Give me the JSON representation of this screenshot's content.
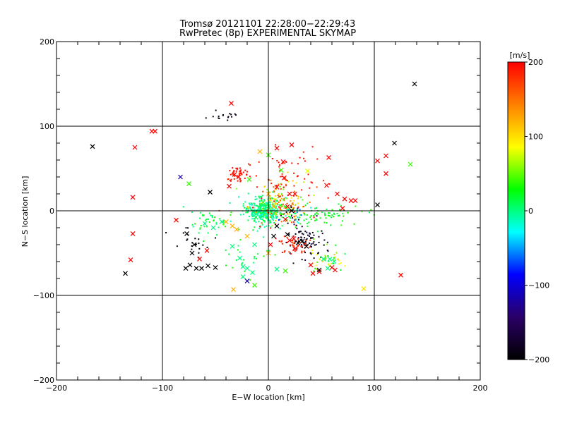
{
  "chart_data": {
    "type": "scatter",
    "title": "Tromsø 20121101 22:28:00−22:29:43",
    "subtitle": "RwPretec (8p) EXPERIMENTAL SKYMAP",
    "xlabel": "E−W location [km]",
    "ylabel": "N−S location [km]",
    "xlim": [
      -200,
      200
    ],
    "ylim": [
      -200,
      200
    ],
    "xticks": [
      -200,
      -100,
      0,
      100,
      200
    ],
    "yticks": [
      -200,
      -100,
      0,
      100,
      200
    ],
    "grid": true,
    "colorbar": {
      "label": "[m/s]",
      "min": -200,
      "max": 200,
      "ticks": [
        200,
        100,
        0,
        -100,
        -200
      ],
      "colors": [
        "#000000",
        "#2a0066",
        "#0000ff",
        "#00ffff",
        "#00ff00",
        "#ffff00",
        "#ff8000",
        "#ff0000"
      ]
    },
    "x_markers": [
      {
        "x": -166,
        "y": 76,
        "v": -200
      },
      {
        "x": -126,
        "y": 75,
        "v": 200
      },
      {
        "x": -110,
        "y": 94,
        "v": 200
      },
      {
        "x": -107,
        "y": 94,
        "v": 200
      },
      {
        "x": -128,
        "y": 16,
        "v": 200
      },
      {
        "x": -128,
        "y": -27,
        "v": 200
      },
      {
        "x": -130,
        "y": -58,
        "v": 200
      },
      {
        "x": -135,
        "y": -74,
        "v": -200
      },
      {
        "x": -83,
        "y": 40,
        "v": -120
      },
      {
        "x": -75,
        "y": 32,
        "v": 40
      },
      {
        "x": -55,
        "y": 22,
        "v": -200
      },
      {
        "x": -87,
        "y": -11,
        "v": 200
      },
      {
        "x": -77,
        "y": -27,
        "v": -200
      },
      {
        "x": -70,
        "y": -40,
        "v": -200
      },
      {
        "x": -72,
        "y": -50,
        "v": -200
      },
      {
        "x": -74,
        "y": -64,
        "v": -200
      },
      {
        "x": -68,
        "y": -68,
        "v": -200
      },
      {
        "x": -63,
        "y": -68,
        "v": -200
      },
      {
        "x": -57,
        "y": -65,
        "v": -200
      },
      {
        "x": -50,
        "y": -67,
        "v": -200
      },
      {
        "x": -78,
        "y": -68,
        "v": -200
      },
      {
        "x": -65,
        "y": -57,
        "v": 200
      },
      {
        "x": -58,
        "y": -47,
        "v": 200
      },
      {
        "x": -60,
        "y": -15,
        "v": 0
      },
      {
        "x": -52,
        "y": -20,
        "v": 0
      },
      {
        "x": -44,
        "y": -13,
        "v": 0
      },
      {
        "x": -40,
        "y": -13,
        "v": 120
      },
      {
        "x": -34,
        "y": -18,
        "v": 120
      },
      {
        "x": -35,
        "y": 127,
        "v": 200
      },
      {
        "x": -28,
        "y": 40,
        "v": 200
      },
      {
        "x": -32,
        "y": 43,
        "v": 200
      },
      {
        "x": -37,
        "y": 29,
        "v": 200
      },
      {
        "x": -18,
        "y": 37,
        "v": 40
      },
      {
        "x": -34,
        "y": -42,
        "v": 0
      },
      {
        "x": -27,
        "y": -56,
        "v": 0
      },
      {
        "x": -24,
        "y": -66,
        "v": 0
      },
      {
        "x": -24,
        "y": -78,
        "v": 0
      },
      {
        "x": -20,
        "y": -68,
        "v": 0
      },
      {
        "x": -15,
        "y": -73,
        "v": 0
      },
      {
        "x": -13,
        "y": -40,
        "v": 0
      },
      {
        "x": -33,
        "y": -93,
        "v": 120
      },
      {
        "x": -20,
        "y": -83,
        "v": -120
      },
      {
        "x": -13,
        "y": -88,
        "v": 40
      },
      {
        "x": -8,
        "y": 70,
        "v": 120
      },
      {
        "x": 0,
        "y": 66,
        "v": 40
      },
      {
        "x": 8,
        "y": 74,
        "v": 200
      },
      {
        "x": 14,
        "y": 58,
        "v": 200
      },
      {
        "x": 22,
        "y": 78,
        "v": 200
      },
      {
        "x": 12,
        "y": 48,
        "v": 40
      },
      {
        "x": 15,
        "y": 39,
        "v": 200
      },
      {
        "x": 8,
        "y": 28,
        "v": 200
      },
      {
        "x": 20,
        "y": 20,
        "v": 200
      },
      {
        "x": 0,
        "y": 20,
        "v": 120
      },
      {
        "x": -5,
        "y": 10,
        "v": 40
      },
      {
        "x": 5,
        "y": 5,
        "v": 120
      },
      {
        "x": 18,
        "y": 5,
        "v": 200
      },
      {
        "x": 22,
        "y": 0,
        "v": -200
      },
      {
        "x": 25,
        "y": 20,
        "v": 200
      },
      {
        "x": 37,
        "y": 47,
        "v": 80
      },
      {
        "x": 57,
        "y": 63,
        "v": 200
      },
      {
        "x": 55,
        "y": 30,
        "v": 200
      },
      {
        "x": 65,
        "y": 20,
        "v": 200
      },
      {
        "x": 72,
        "y": 14,
        "v": 200
      },
      {
        "x": 78,
        "y": 12,
        "v": 200
      },
      {
        "x": 82,
        "y": 12,
        "v": 200
      },
      {
        "x": 70,
        "y": 3,
        "v": 200
      },
      {
        "x": 103,
        "y": 59,
        "v": 200
      },
      {
        "x": 111,
        "y": 65,
        "v": 200
      },
      {
        "x": 119,
        "y": 80,
        "v": -200
      },
      {
        "x": 111,
        "y": 44,
        "v": 200
      },
      {
        "x": 134,
        "y": 55,
        "v": 40
      },
      {
        "x": 138,
        "y": 150,
        "v": -200
      },
      {
        "x": 103,
        "y": 7,
        "v": -200
      },
      {
        "x": 125,
        "y": -76,
        "v": 200
      },
      {
        "x": 90,
        "y": -92,
        "v": 100
      },
      {
        "x": 20,
        "y": -35,
        "v": 200
      },
      {
        "x": 24,
        "y": -33,
        "v": 200
      },
      {
        "x": 28,
        "y": -38,
        "v": -200
      },
      {
        "x": 32,
        "y": -36,
        "v": -200
      },
      {
        "x": 36,
        "y": -42,
        "v": -200
      },
      {
        "x": 18,
        "y": -28,
        "v": -200
      },
      {
        "x": 25,
        "y": -45,
        "v": 200
      },
      {
        "x": 40,
        "y": -64,
        "v": 200
      },
      {
        "x": 48,
        "y": -72,
        "v": 200
      },
      {
        "x": 52,
        "y": -57,
        "v": 0
      },
      {
        "x": 58,
        "y": -57,
        "v": 0
      },
      {
        "x": 62,
        "y": -60,
        "v": 0
      },
      {
        "x": 56,
        "y": -68,
        "v": 0
      },
      {
        "x": 60,
        "y": -67,
        "v": 200
      },
      {
        "x": 63,
        "y": -70,
        "v": 200
      },
      {
        "x": 48,
        "y": -70,
        "v": -200
      },
      {
        "x": 42,
        "y": -74,
        "v": 200
      },
      {
        "x": 8,
        "y": -69,
        "v": 0
      },
      {
        "x": 16,
        "y": -71,
        "v": 40
      },
      {
        "x": 2,
        "y": -40,
        "v": 200
      },
      {
        "x": 0,
        "y": -50,
        "v": 120
      },
      {
        "x": 8,
        "y": -18,
        "v": -200
      },
      {
        "x": 16,
        "y": -10,
        "v": 200
      },
      {
        "x": 5,
        "y": -30,
        "v": -200
      },
      {
        "x": -20,
        "y": -30,
        "v": 120
      },
      {
        "x": -30,
        "y": -22,
        "v": 120
      }
    ],
    "dot_clusters": [
      {
        "cx": -5,
        "cy": 0,
        "sx": 9,
        "sy": 8,
        "n": 360,
        "v": [
          -20,
          20
        ]
      },
      {
        "cx": 10,
        "cy": 12,
        "sx": 14,
        "sy": 14,
        "n": 140,
        "v": [
          40,
          200
        ]
      },
      {
        "cx": -28,
        "cy": 43,
        "sx": 6,
        "sy": 6,
        "n": 45,
        "v": [
          180,
          200
        ]
      },
      {
        "cx": 35,
        "cy": -35,
        "sx": 10,
        "sy": 8,
        "n": 80,
        "v": [
          -200,
          -160
        ]
      },
      {
        "cx": 25,
        "cy": -40,
        "sx": 8,
        "sy": 6,
        "n": 45,
        "v": [
          170,
          200
        ]
      },
      {
        "cx": 50,
        "cy": -5,
        "sx": 22,
        "sy": 6,
        "n": 80,
        "v": [
          10,
          40
        ]
      },
      {
        "cx": 55,
        "cy": -58,
        "sx": 8,
        "sy": 7,
        "n": 45,
        "v": [
          10,
          120
        ]
      },
      {
        "cx": -40,
        "cy": 112,
        "sx": 6,
        "sy": 3,
        "n": 16,
        "v": [
          -200,
          -180
        ]
      },
      {
        "cx": -55,
        "cy": -15,
        "sx": 12,
        "sy": 8,
        "n": 40,
        "v": [
          0,
          40
        ]
      },
      {
        "cx": -70,
        "cy": -35,
        "sx": 8,
        "sy": 10,
        "n": 22,
        "v": [
          -200,
          -180
        ]
      },
      {
        "cx": 20,
        "cy": 40,
        "sx": 22,
        "sy": 20,
        "n": 50,
        "v": [
          180,
          200
        ]
      },
      {
        "cx": -20,
        "cy": -55,
        "sx": 14,
        "sy": 12,
        "n": 25,
        "v": [
          0,
          40
        ]
      },
      {
        "cx": 25,
        "cy": -5,
        "sx": 10,
        "sy": 8,
        "n": 40,
        "v": [
          -200,
          200
        ]
      }
    ]
  }
}
